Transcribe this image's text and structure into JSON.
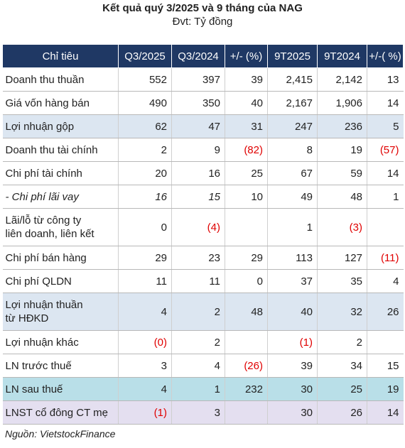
{
  "header": {
    "title": "Kết quả quý 3/2025 và 9 tháng của NAG",
    "unit": "Đvt: Tỷ đồng"
  },
  "table": {
    "columns": [
      "Chỉ tiêu",
      "Q3/2025",
      "Q3/2024",
      "+/- (%)",
      "9T2025",
      "9T2024",
      "+/-( %)"
    ],
    "rows": [
      {
        "label": "Doanh thu thuần",
        "cells": [
          "552",
          "397",
          "39",
          "2,415",
          "2,142",
          "13"
        ]
      },
      {
        "label": "Giá vốn hàng bán",
        "cells": [
          "490",
          "350",
          "40",
          "2,167",
          "1,906",
          "14"
        ]
      },
      {
        "label": "Lợi nhuận gộp",
        "cells": [
          "62",
          "47",
          "31",
          "247",
          "236",
          "5"
        ]
      },
      {
        "label": "Doanh thu tài chính",
        "cells": [
          "2",
          "9",
          "(82)",
          "8",
          "19",
          "(57)"
        ]
      },
      {
        "label": "Chi phí tài chính",
        "cells": [
          "20",
          "16",
          "25",
          "67",
          "59",
          "14"
        ]
      },
      {
        "label": "- Chi phí lãi vay",
        "cells": [
          "16",
          "15",
          "10",
          "49",
          "48",
          "1"
        ]
      },
      {
        "label_lines": [
          "Lãi/lỗ từ công ty",
          "liên doanh, liên kết"
        ],
        "cells": [
          "0",
          "(4)",
          "",
          "1",
          "(3)",
          ""
        ]
      },
      {
        "label": "Chi phí bán hàng",
        "cells": [
          "29",
          "23",
          "29",
          "113",
          "127",
          "(11)"
        ]
      },
      {
        "label": "Chi phí QLDN",
        "cells": [
          "11",
          "11",
          "0",
          "37",
          "35",
          "4"
        ]
      },
      {
        "label_lines": [
          "Lợi nhuận thuần",
          "từ HĐKD"
        ],
        "cells": [
          "4",
          "2",
          "48",
          "40",
          "32",
          "26"
        ]
      },
      {
        "label": "Lợi nhuận khác",
        "cells": [
          "(0)",
          "2",
          "",
          "(1)",
          "2",
          ""
        ]
      },
      {
        "label": "LN trước thuế",
        "cells": [
          "3",
          "4",
          "(26)",
          "39",
          "34",
          "15"
        ]
      },
      {
        "label": "LN sau thuế",
        "cells": [
          "4",
          "1",
          "232",
          "30",
          "25",
          "19"
        ]
      },
      {
        "label": "LNST cổ đông CT mẹ",
        "cells": [
          "(1)",
          "3",
          "",
          "30",
          "26",
          "14"
        ]
      }
    ]
  },
  "colors": {
    "header_bg": "#1f3864",
    "highlight_blue": "#dce6f1",
    "highlight_teal": "#b9dfe8",
    "highlight_lilac": "#e4dff0",
    "negative": "#e00000"
  },
  "footer": {
    "source": "Nguồn: VietstockFinance"
  }
}
